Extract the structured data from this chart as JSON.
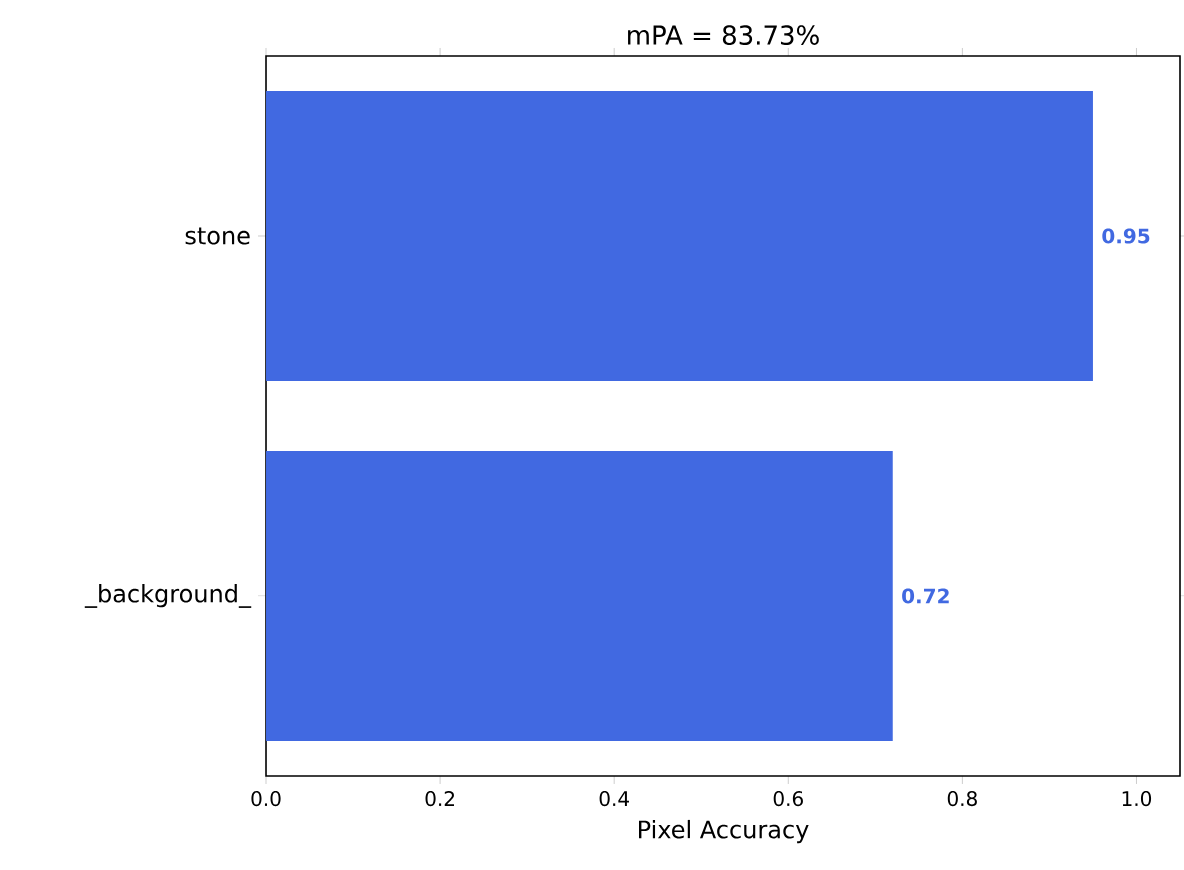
{
  "chart_data": {
    "type": "bar",
    "orientation": "horizontal",
    "title": "mPA = 83.73%",
    "xlabel": "Pixel Accuracy",
    "categories": [
      "stone",
      "_background_"
    ],
    "values": [
      0.95,
      0.72
    ],
    "color": "#4169e1",
    "data_labels": true,
    "value_labels": [
      "0.95",
      "0.72"
    ],
    "xlim": [
      0,
      1.05
    ],
    "xticks": [
      {
        "value": 0,
        "label": "0.0"
      },
      {
        "value": 0.2,
        "label": "0.2"
      },
      {
        "value": 0.4,
        "label": "0.4"
      },
      {
        "value": 0.6,
        "label": "0.6"
      },
      {
        "value": 0.8,
        "label": "0.8"
      },
      {
        "value": 1.0,
        "label": "1.0"
      }
    ]
  }
}
